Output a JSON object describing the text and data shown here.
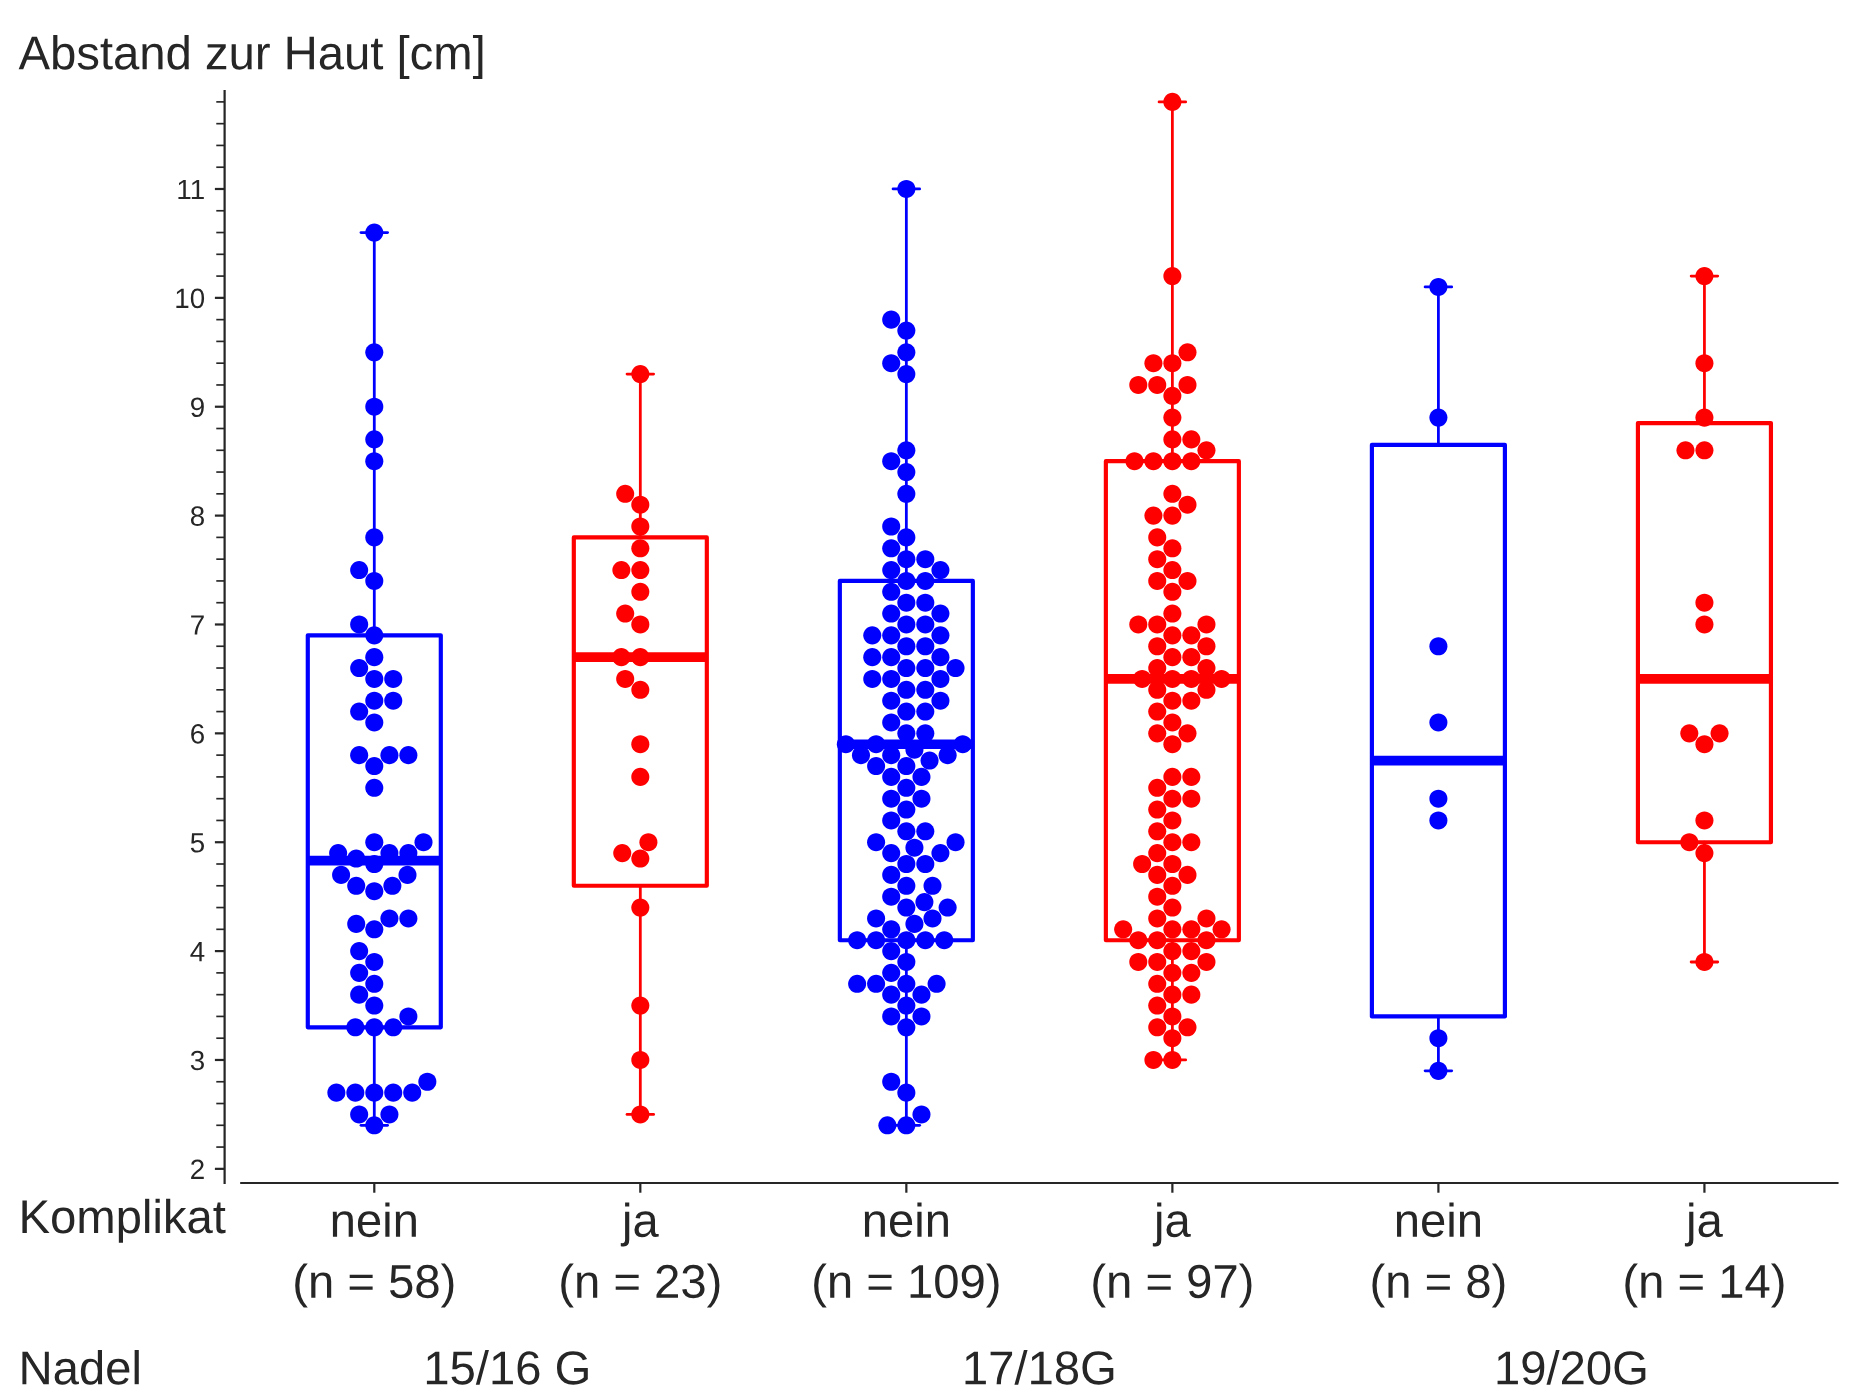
{
  "chart_data": {
    "type": "box",
    "ylabel": "Abstand zur Haut [cm]",
    "categories": [
      "nein\n(n = 58)",
      "ja\n(n = 23)",
      "nein\n(n = 109)",
      "ja\n(n = 97)",
      "nein\n(n = 8)",
      "ja\n(n = 14)"
    ],
    "colors": [
      "#0000ff",
      "#ff0000",
      "#0000ff",
      "#ff0000",
      "#0000ff",
      "#ff0000"
    ],
    "boxes": [
      {
        "low": 2.4,
        "q1": 3.3,
        "median": 4.83,
        "q3": 6.9,
        "high": 10.6
      },
      {
        "low": 2.5,
        "q1": 4.6,
        "median": 6.7,
        "q3": 7.8,
        "high": 9.3
      },
      {
        "low": 2.4,
        "q1": 4.1,
        "median": 5.9,
        "q3": 7.4,
        "high": 11.0
      },
      {
        "low": 3.0,
        "q1": 4.1,
        "median": 6.5,
        "q3": 8.5,
        "high": 11.8
      },
      {
        "low": 2.9,
        "q1": 3.4,
        "median": 5.75,
        "q3": 8.65,
        "high": 10.1
      },
      {
        "low": 3.9,
        "q1": 5.0,
        "median": 6.5,
        "q3": 8.85,
        "high": 10.2
      }
    ],
    "series": [
      {
        "type": "scatter",
        "color": "#0000ff",
        "x": [
          "nein\n(n = 58)",
          "nein\n(n = 58)",
          "nein\n(n = 58)",
          "nein\n(n = 58)",
          "nein\n(n = 58)",
          "nein\n(n = 58)",
          "nein\n(n = 58)",
          "nein\n(n = 58)",
          "nein\n(n = 58)",
          "nein\n(n = 58)",
          "nein\n(n = 58)",
          "nein\n(n = 58)",
          "nein\n(n = 58)",
          "nein\n(n = 58)",
          "nein\n(n = 58)",
          "nein\n(n = 58)",
          "nein\n(n = 58)",
          "nein\n(n = 58)",
          "nein\n(n = 58)",
          "nein\n(n = 58)",
          "nein\n(n = 58)",
          "nein\n(n = 58)",
          "nein\n(n = 58)",
          "nein\n(n = 58)",
          "nein\n(n = 58)",
          "nein\n(n = 58)",
          "nein\n(n = 58)",
          "nein\n(n = 58)",
          "nein\n(n = 58)",
          "nein\n(n = 58)",
          "nein\n(n = 58)",
          "nein\n(n = 58)",
          "nein\n(n = 58)",
          "nein\n(n = 58)",
          "nein\n(n = 58)",
          "nein\n(n = 58)",
          "nein\n(n = 58)",
          "nein\n(n = 58)",
          "nein\n(n = 58)",
          "nein\n(n = 58)",
          "nein\n(n = 58)",
          "nein\n(n = 58)",
          "nein\n(n = 58)",
          "nein\n(n = 58)",
          "nein\n(n = 58)",
          "nein\n(n = 58)",
          "nein\n(n = 58)",
          "nein\n(n = 58)",
          "nein\n(n = 58)",
          "nein\n(n = 58)",
          "nein\n(n = 58)",
          "nein\n(n = 58)",
          "nein\n(n = 58)",
          "nein\n(n = 58)",
          "nein\n(n = 58)",
          "nein\n(n = 58)",
          "nein\n(n = 58)",
          "nein\n(n = 58)"
        ],
        "values": [
          10.6,
          9.5,
          9.0,
          8.7,
          8.5,
          7.8,
          7.5,
          7.4,
          7.0,
          6.9,
          6.7,
          6.6,
          6.5,
          6.5,
          6.3,
          6.3,
          6.2,
          6.1,
          5.8,
          5.8,
          5.8,
          5.7,
          5.5,
          5.0,
          5.0,
          4.9,
          4.9,
          4.9,
          4.85,
          4.8,
          4.7,
          4.7,
          4.6,
          4.6,
          4.55,
          4.3,
          4.3,
          4.25,
          4.2,
          4.0,
          3.9,
          3.8,
          3.7,
          3.6,
          3.5,
          3.4,
          3.3,
          3.3,
          3.3,
          2.8,
          2.7,
          2.7,
          2.7,
          2.7,
          2.7,
          2.5,
          2.5,
          2.4
        ]
      },
      {
        "type": "scatter",
        "color": "#ff0000",
        "x": [
          "ja\n(n = 23)",
          "ja\n(n = 23)",
          "ja\n(n = 23)",
          "ja\n(n = 23)",
          "ja\n(n = 23)",
          "ja\n(n = 23)",
          "ja\n(n = 23)",
          "ja\n(n = 23)",
          "ja\n(n = 23)",
          "ja\n(n = 23)",
          "ja\n(n = 23)",
          "ja\n(n = 23)",
          "ja\n(n = 23)",
          "ja\n(n = 23)",
          "ja\n(n = 23)",
          "ja\n(n = 23)",
          "ja\n(n = 23)",
          "ja\n(n = 23)",
          "ja\n(n = 23)",
          "ja\n(n = 23)",
          "ja\n(n = 23)",
          "ja\n(n = 23)",
          "ja\n(n = 23)"
        ],
        "values": [
          9.3,
          8.2,
          8.1,
          7.9,
          7.7,
          7.5,
          7.5,
          7.3,
          7.1,
          7.0,
          6.7,
          6.7,
          6.5,
          6.4,
          5.9,
          5.6,
          5.0,
          4.9,
          4.85,
          4.4,
          3.5,
          3.0,
          2.5
        ]
      },
      {
        "type": "scatter",
        "color": "#0000ff",
        "x": [
          "nein\n(n = 109)",
          "nein\n(n = 109)",
          "nein\n(n = 109)",
          "nein\n(n = 109)",
          "nein\n(n = 109)",
          "nein\n(n = 109)",
          "nein\n(n = 109)",
          "nein\n(n = 109)",
          "nein\n(n = 109)",
          "nein\n(n = 109)",
          "nein\n(n = 109)",
          "nein\n(n = 109)",
          "nein\n(n = 109)",
          "nein\n(n = 109)",
          "nein\n(n = 109)",
          "nein\n(n = 109)",
          "nein\n(n = 109)",
          "nein\n(n = 109)",
          "nein\n(n = 109)",
          "nein\n(n = 109)",
          "nein\n(n = 109)",
          "nein\n(n = 109)",
          "nein\n(n = 109)",
          "nein\n(n = 109)",
          "nein\n(n = 109)",
          "nein\n(n = 109)",
          "nein\n(n = 109)",
          "nein\n(n = 109)",
          "nein\n(n = 109)",
          "nein\n(n = 109)",
          "nein\n(n = 109)",
          "nein\n(n = 109)",
          "nein\n(n = 109)",
          "nein\n(n = 109)",
          "nein\n(n = 109)",
          "nein\n(n = 109)",
          "nein\n(n = 109)",
          "nein\n(n = 109)",
          "nein\n(n = 109)",
          "nein\n(n = 109)",
          "nein\n(n = 109)",
          "nein\n(n = 109)",
          "nein\n(n = 109)",
          "nein\n(n = 109)",
          "nein\n(n = 109)",
          "nein\n(n = 109)",
          "nein\n(n = 109)",
          "nein\n(n = 109)",
          "nein\n(n = 109)",
          "nein\n(n = 109)",
          "nein\n(n = 109)",
          "nein\n(n = 109)",
          "nein\n(n = 109)",
          "nein\n(n = 109)",
          "nein\n(n = 109)",
          "nein\n(n = 109)",
          "nein\n(n = 109)",
          "nein\n(n = 109)",
          "nein\n(n = 109)",
          "nein\n(n = 109)",
          "nein\n(n = 109)",
          "nein\n(n = 109)",
          "nein\n(n = 109)",
          "nein\n(n = 109)",
          "nein\n(n = 109)",
          "nein\n(n = 109)",
          "nein\n(n = 109)",
          "nein\n(n = 109)",
          "nein\n(n = 109)",
          "nein\n(n = 109)",
          "nein\n(n = 109)",
          "nein\n(n = 109)",
          "nein\n(n = 109)",
          "nein\n(n = 109)",
          "nein\n(n = 109)",
          "nein\n(n = 109)",
          "nein\n(n = 109)",
          "nein\n(n = 109)",
          "nein\n(n = 109)",
          "nein\n(n = 109)",
          "nein\n(n = 109)",
          "nein\n(n = 109)",
          "nein\n(n = 109)",
          "nein\n(n = 109)",
          "nein\n(n = 109)",
          "nein\n(n = 109)",
          "nein\n(n = 109)",
          "nein\n(n = 109)",
          "nein\n(n = 109)",
          "nein\n(n = 109)",
          "nein\n(n = 109)",
          "nein\n(n = 109)",
          "nein\n(n = 109)",
          "nein\n(n = 109)",
          "nein\n(n = 109)",
          "nein\n(n = 109)",
          "nein\n(n = 109)",
          "nein\n(n = 109)",
          "nein\n(n = 109)",
          "nein\n(n = 109)",
          "nein\n(n = 109)",
          "nein\n(n = 109)",
          "nein\n(n = 109)",
          "nein\n(n = 109)",
          "nein\n(n = 109)",
          "nein\n(n = 109)",
          "nein\n(n = 109)",
          "nein\n(n = 109)",
          "nein\n(n = 109)"
        ],
        "values": [
          11.0,
          9.8,
          9.7,
          9.5,
          9.4,
          9.3,
          8.6,
          8.5,
          8.4,
          8.2,
          7.9,
          7.8,
          7.7,
          7.6,
          7.6,
          7.5,
          7.5,
          7.4,
          7.4,
          7.3,
          7.2,
          7.2,
          7.1,
          7.1,
          7.0,
          7.0,
          6.9,
          6.9,
          6.9,
          6.8,
          6.8,
          6.7,
          6.7,
          6.7,
          6.6,
          6.6,
          6.6,
          6.5,
          6.5,
          6.5,
          6.4,
          6.4,
          6.3,
          6.3,
          6.2,
          6.2,
          6.1,
          6.0,
          6.0,
          5.9,
          5.9,
          5.9,
          5.85,
          5.8,
          5.8,
          5.8,
          5.75,
          5.7,
          5.7,
          5.6,
          5.6,
          5.5,
          5.4,
          5.4,
          5.3,
          5.2,
          5.1,
          5.1,
          5.0,
          5.0,
          4.95,
          4.9,
          4.9,
          4.8,
          4.8,
          4.7,
          4.6,
          4.6,
          4.5,
          4.45,
          4.4,
          4.4,
          4.3,
          4.3,
          4.25,
          4.2,
          4.1,
          4.1,
          4.1,
          4.1,
          4.1,
          4.0,
          3.9,
          3.8,
          3.7,
          3.7,
          3.7,
          3.7,
          3.6,
          3.6,
          3.5,
          3.4,
          3.4,
          3.3,
          2.8,
          2.7,
          2.5,
          2.4,
          2.4
        ]
      },
      {
        "type": "scatter",
        "color": "#ff0000",
        "x": [
          "ja\n(n = 97)",
          "ja\n(n = 97)",
          "ja\n(n = 97)",
          "ja\n(n = 97)",
          "ja\n(n = 97)",
          "ja\n(n = 97)",
          "ja\n(n = 97)",
          "ja\n(n = 97)",
          "ja\n(n = 97)",
          "ja\n(n = 97)",
          "ja\n(n = 97)",
          "ja\n(n = 97)",
          "ja\n(n = 97)",
          "ja\n(n = 97)",
          "ja\n(n = 97)",
          "ja\n(n = 97)",
          "ja\n(n = 97)",
          "ja\n(n = 97)",
          "ja\n(n = 97)",
          "ja\n(n = 97)",
          "ja\n(n = 97)",
          "ja\n(n = 97)",
          "ja\n(n = 97)",
          "ja\n(n = 97)",
          "ja\n(n = 97)",
          "ja\n(n = 97)",
          "ja\n(n = 97)",
          "ja\n(n = 97)",
          "ja\n(n = 97)",
          "ja\n(n = 97)",
          "ja\n(n = 97)",
          "ja\n(n = 97)",
          "ja\n(n = 97)",
          "ja\n(n = 97)",
          "ja\n(n = 97)",
          "ja\n(n = 97)",
          "ja\n(n = 97)",
          "ja\n(n = 97)",
          "ja\n(n = 97)",
          "ja\n(n = 97)",
          "ja\n(n = 97)",
          "ja\n(n = 97)",
          "ja\n(n = 97)",
          "ja\n(n = 97)",
          "ja\n(n = 97)",
          "ja\n(n = 97)",
          "ja\n(n = 97)",
          "ja\n(n = 97)",
          "ja\n(n = 97)",
          "ja\n(n = 97)",
          "ja\n(n = 97)",
          "ja\n(n = 97)",
          "ja\n(n = 97)",
          "ja\n(n = 97)",
          "ja\n(n = 97)",
          "ja\n(n = 97)",
          "ja\n(n = 97)",
          "ja\n(n = 97)",
          "ja\n(n = 97)",
          "ja\n(n = 97)",
          "ja\n(n = 97)",
          "ja\n(n = 97)",
          "ja\n(n = 97)",
          "ja\n(n = 97)",
          "ja\n(n = 97)",
          "ja\n(n = 97)",
          "ja\n(n = 97)",
          "ja\n(n = 97)",
          "ja\n(n = 97)",
          "ja\n(n = 97)",
          "ja\n(n = 97)",
          "ja\n(n = 97)",
          "ja\n(n = 97)",
          "ja\n(n = 97)",
          "ja\n(n = 97)",
          "ja\n(n = 97)",
          "ja\n(n = 97)",
          "ja\n(n = 97)",
          "ja\n(n = 97)",
          "ja\n(n = 97)",
          "ja\n(n = 97)",
          "ja\n(n = 97)",
          "ja\n(n = 97)",
          "ja\n(n = 97)",
          "ja\n(n = 97)",
          "ja\n(n = 97)",
          "ja\n(n = 97)",
          "ja\n(n = 97)",
          "ja\n(n = 97)",
          "ja\n(n = 97)",
          "ja\n(n = 97)",
          "ja\n(n = 97)",
          "ja\n(n = 97)",
          "ja\n(n = 97)",
          "ja\n(n = 97)",
          "ja\n(n = 97)",
          "ja\n(n = 97)"
        ],
        "values": [
          11.8,
          10.2,
          9.5,
          9.4,
          9.4,
          9.2,
          9.2,
          9.2,
          9.1,
          8.9,
          8.7,
          8.7,
          8.6,
          8.5,
          8.5,
          8.5,
          8.5,
          8.2,
          8.1,
          8.0,
          8.0,
          7.8,
          7.7,
          7.6,
          7.5,
          7.4,
          7.4,
          7.3,
          7.1,
          7.0,
          7.0,
          7.0,
          6.9,
          6.9,
          6.8,
          6.8,
          6.7,
          6.7,
          6.6,
          6.6,
          6.5,
          6.5,
          6.5,
          6.5,
          6.4,
          6.4,
          6.3,
          6.3,
          6.2,
          6.1,
          6.0,
          6.0,
          5.9,
          5.6,
          5.6,
          5.5,
          5.4,
          5.4,
          5.3,
          5.2,
          5.1,
          5.0,
          5.0,
          4.9,
          4.8,
          4.8,
          4.7,
          4.7,
          4.6,
          4.5,
          4.4,
          4.3,
          4.3,
          4.2,
          4.2,
          4.2,
          4.2,
          4.1,
          4.1,
          4.1,
          4.0,
          4.0,
          3.9,
          3.9,
          3.9,
          3.8,
          3.8,
          3.7,
          3.6,
          3.6,
          3.5,
          3.4,
          3.3,
          3.3,
          3.2,
          3.0,
          3.0
        ]
      },
      {
        "type": "scatter",
        "color": "#0000ff",
        "x": [
          "nein\n(n = 8)",
          "nein\n(n = 8)",
          "nein\n(n = 8)",
          "nein\n(n = 8)",
          "nein\n(n = 8)",
          "nein\n(n = 8)",
          "nein\n(n = 8)",
          "nein\n(n = 8)"
        ],
        "values": [
          10.1,
          8.9,
          6.8,
          6.1,
          5.4,
          5.2,
          3.2,
          2.9
        ]
      },
      {
        "type": "scatter",
        "color": "#ff0000",
        "x": [
          "ja\n(n = 14)",
          "ja\n(n = 14)",
          "ja\n(n = 14)",
          "ja\n(n = 14)",
          "ja\n(n = 14)",
          "ja\n(n = 14)",
          "ja\n(n = 14)",
          "ja\n(n = 14)",
          "ja\n(n = 14)",
          "ja\n(n = 14)",
          "ja\n(n = 14)",
          "ja\n(n = 14)",
          "ja\n(n = 14)",
          "ja\n(n = 14)"
        ],
        "values": [
          10.2,
          9.4,
          8.9,
          8.6,
          8.6,
          7.2,
          7.0,
          6.0,
          6.0,
          5.9,
          5.2,
          5.0,
          4.9,
          3.9
        ]
      }
    ],
    "ylim": [
      1.87,
      11.9
    ],
    "yticks": [
      2,
      3,
      4,
      5,
      6,
      7,
      8,
      9,
      10,
      11
    ],
    "marker": "circle",
    "grid": false,
    "legend": false,
    "annotations": [
      "Komplikat",
      "Nadel",
      "15/16 G",
      "17/18G",
      "19/20G"
    ]
  }
}
